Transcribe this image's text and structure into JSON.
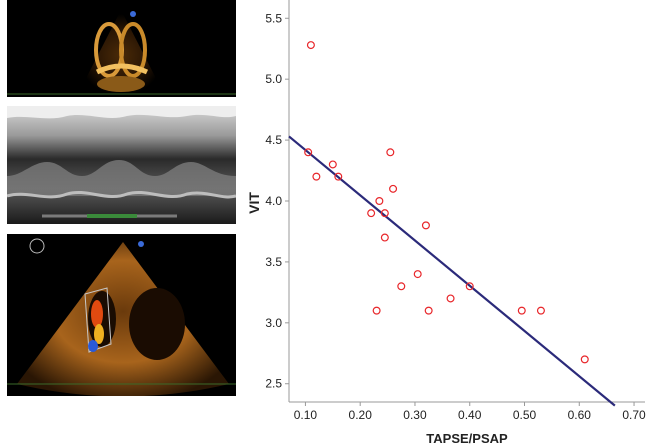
{
  "images": {
    "top": {
      "name": "apical-four-chamber-echo"
    },
    "middle": {
      "name": "m-mode-echo-strip"
    },
    "bottom": {
      "name": "doppler-color-echo"
    }
  },
  "colors": {
    "point": "#e8262a",
    "line": "#2b2a7a",
    "axis": "#999999"
  },
  "chart_data": {
    "type": "scatter",
    "xlabel": "TAPSE/PSAP",
    "ylabel": "VIT",
    "xlim": [
      0.07,
      0.72
    ],
    "ylim": [
      2.35,
      5.65
    ],
    "x_ticks": [
      "0.10",
      "0.20",
      "0.30",
      "0.40",
      "0.50",
      "0.60",
      "0.70"
    ],
    "y_ticks": [
      "2.5",
      "3.0",
      "3.5",
      "4.0",
      "4.5",
      "5.0",
      "5.5"
    ],
    "grid": false,
    "points": [
      {
        "x": 0.11,
        "y": 5.28
      },
      {
        "x": 0.105,
        "y": 4.4
      },
      {
        "x": 0.12,
        "y": 4.2
      },
      {
        "x": 0.15,
        "y": 4.3
      },
      {
        "x": 0.16,
        "y": 4.2
      },
      {
        "x": 0.22,
        "y": 3.9
      },
      {
        "x": 0.235,
        "y": 4.0
      },
      {
        "x": 0.245,
        "y": 3.9
      },
      {
        "x": 0.245,
        "y": 3.7
      },
      {
        "x": 0.255,
        "y": 4.4
      },
      {
        "x": 0.26,
        "y": 4.1
      },
      {
        "x": 0.275,
        "y": 3.3
      },
      {
        "x": 0.23,
        "y": 3.1
      },
      {
        "x": 0.305,
        "y": 3.4
      },
      {
        "x": 0.32,
        "y": 3.8
      },
      {
        "x": 0.325,
        "y": 3.1
      },
      {
        "x": 0.365,
        "y": 3.2
      },
      {
        "x": 0.4,
        "y": 3.3
      },
      {
        "x": 0.495,
        "y": 3.1
      },
      {
        "x": 0.53,
        "y": 3.1
      },
      {
        "x": 0.61,
        "y": 2.7
      }
    ],
    "regression": {
      "x1": 0.07,
      "y1": 4.53,
      "x2": 0.665,
      "y2": 2.32
    }
  }
}
